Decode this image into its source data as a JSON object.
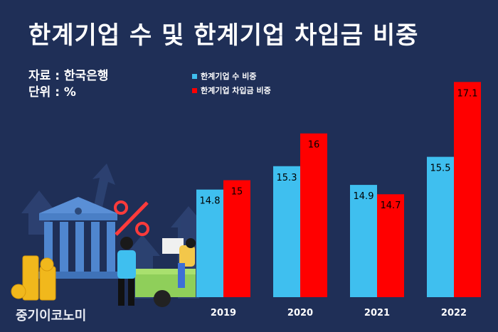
{
  "title": "한계기업 수 및 한계기업 차입금 비중",
  "source": "자료 : 한국은행",
  "unit": "단위 : %",
  "watermark": "중기이코노미",
  "colors": {
    "background": "#1f2f57",
    "series1": "#3fbfef",
    "series2": "#ff0000"
  },
  "chart_data": {
    "type": "bar",
    "categories": [
      "2019",
      "2020",
      "2021",
      "2022"
    ],
    "series": [
      {
        "name": "한계기업 수 비중",
        "values": [
          14.8,
          15.3,
          14.9,
          15.5
        ],
        "labels": [
          "14.8",
          "15.3",
          "14.9",
          "15.5"
        ]
      },
      {
        "name": "한계기업 차입금 비중",
        "values": [
          15,
          16,
          14.7,
          17.1
        ],
        "labels": [
          "15",
          "16",
          "14.7",
          "17.1"
        ]
      }
    ],
    "legend": "top-center",
    "grid": false
  }
}
